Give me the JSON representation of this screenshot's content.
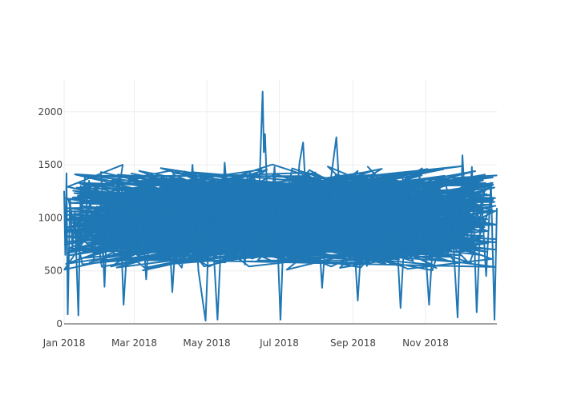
{
  "chart_data": {
    "type": "line",
    "title": "",
    "xlabel": "",
    "ylabel": "",
    "x_axis_type": "date",
    "x_range": [
      "2018-01-01",
      "2018-12-31"
    ],
    "x_ticks": [
      {
        "date": "2018-01-01",
        "label": "Jan 2018"
      },
      {
        "date": "2018-03-01",
        "label": "Mar 2018"
      },
      {
        "date": "2018-05-01",
        "label": "May 2018"
      },
      {
        "date": "2018-07-01",
        "label": "Jul 2018"
      },
      {
        "date": "2018-09-01",
        "label": "Sep 2018"
      },
      {
        "date": "2018-11-01",
        "label": "Nov 2018"
      }
    ],
    "ylim": [
      0,
      2300
    ],
    "y_ticks": [
      {
        "value": 0,
        "label": "0"
      },
      {
        "value": 500,
        "label": "500"
      },
      {
        "value": 1000,
        "label": "1000"
      },
      {
        "value": 1500,
        "label": "1500"
      },
      {
        "value": 2000,
        "label": "2000"
      }
    ],
    "grid": true,
    "legend": "none",
    "series": [
      {
        "color": "#1f77b4",
        "points": [
          [
            "2018-01-01",
            1250
          ],
          [
            "2018-01-02",
            650
          ],
          [
            "2018-01-03",
            1420
          ],
          [
            "2018-01-04",
            90
          ],
          [
            "2018-01-06",
            1180
          ],
          [
            "2018-01-08",
            720
          ],
          [
            "2018-01-10",
            1050
          ],
          [
            "2018-01-13",
            80
          ],
          [
            "2018-01-15",
            1300
          ],
          [
            "2018-01-18",
            900
          ],
          [
            "2018-01-22",
            1350
          ],
          [
            "2018-01-26",
            610
          ],
          [
            "2018-02-01",
            1150
          ],
          [
            "2018-02-04",
            350
          ],
          [
            "2018-02-07",
            1240
          ],
          [
            "2018-02-11",
            800
          ],
          [
            "2018-02-16",
            1400
          ],
          [
            "2018-02-20",
            180
          ],
          [
            "2018-02-25",
            1100
          ],
          [
            "2018-03-02",
            700
          ],
          [
            "2018-03-06",
            1320
          ],
          [
            "2018-03-11",
            420
          ],
          [
            "2018-03-16",
            1260
          ],
          [
            "2018-03-22",
            850
          ],
          [
            "2018-03-28",
            1380
          ],
          [
            "2018-04-02",
            300
          ],
          [
            "2018-04-07",
            1180
          ],
          [
            "2018-04-13",
            650
          ],
          [
            "2018-04-19",
            1500
          ],
          [
            "2018-04-24",
            500
          ],
          [
            "2018-04-30",
            30
          ],
          [
            "2018-05-04",
            1230
          ],
          [
            "2018-05-10",
            40
          ],
          [
            "2018-05-16",
            1520
          ],
          [
            "2018-05-22",
            760
          ],
          [
            "2018-05-28",
            1280
          ],
          [
            "2018-06-02",
            560
          ],
          [
            "2018-06-08",
            1400
          ],
          [
            "2018-06-13",
            900
          ],
          [
            "2018-06-17",
            2190
          ],
          [
            "2018-06-18",
            1620
          ],
          [
            "2018-06-19",
            1790
          ],
          [
            "2018-06-22",
            820
          ],
          [
            "2018-06-27",
            1480
          ],
          [
            "2018-07-02",
            40
          ],
          [
            "2018-07-06",
            1300
          ],
          [
            "2018-07-12",
            620
          ],
          [
            "2018-07-18",
            1520
          ],
          [
            "2018-07-21",
            1710
          ],
          [
            "2018-07-25",
            880
          ],
          [
            "2018-07-31",
            1420
          ],
          [
            "2018-08-06",
            340
          ],
          [
            "2018-08-12",
            1250
          ],
          [
            "2018-08-18",
            1760
          ],
          [
            "2018-08-24",
            600
          ],
          [
            "2018-08-30",
            1330
          ],
          [
            "2018-09-05",
            220
          ],
          [
            "2018-09-11",
            1280
          ],
          [
            "2018-09-17",
            700
          ],
          [
            "2018-09-23",
            1350
          ],
          [
            "2018-09-29",
            920
          ],
          [
            "2018-10-05",
            1420
          ],
          [
            "2018-10-11",
            150
          ],
          [
            "2018-10-17",
            1380
          ],
          [
            "2018-10-23",
            640
          ],
          [
            "2018-10-29",
            1200
          ],
          [
            "2018-11-04",
            180
          ],
          [
            "2018-11-10",
            1300
          ],
          [
            "2018-11-16",
            760
          ],
          [
            "2018-11-22",
            1240
          ],
          [
            "2018-11-28",
            60
          ],
          [
            "2018-12-02",
            1590
          ],
          [
            "2018-12-06",
            820
          ],
          [
            "2018-12-10",
            1480
          ],
          [
            "2018-12-14",
            110
          ],
          [
            "2018-12-18",
            1200
          ],
          [
            "2018-12-22",
            450
          ],
          [
            "2018-12-26",
            1330
          ],
          [
            "2018-12-29",
            40
          ],
          [
            "2018-12-31",
            1090
          ]
        ]
      }
    ]
  }
}
